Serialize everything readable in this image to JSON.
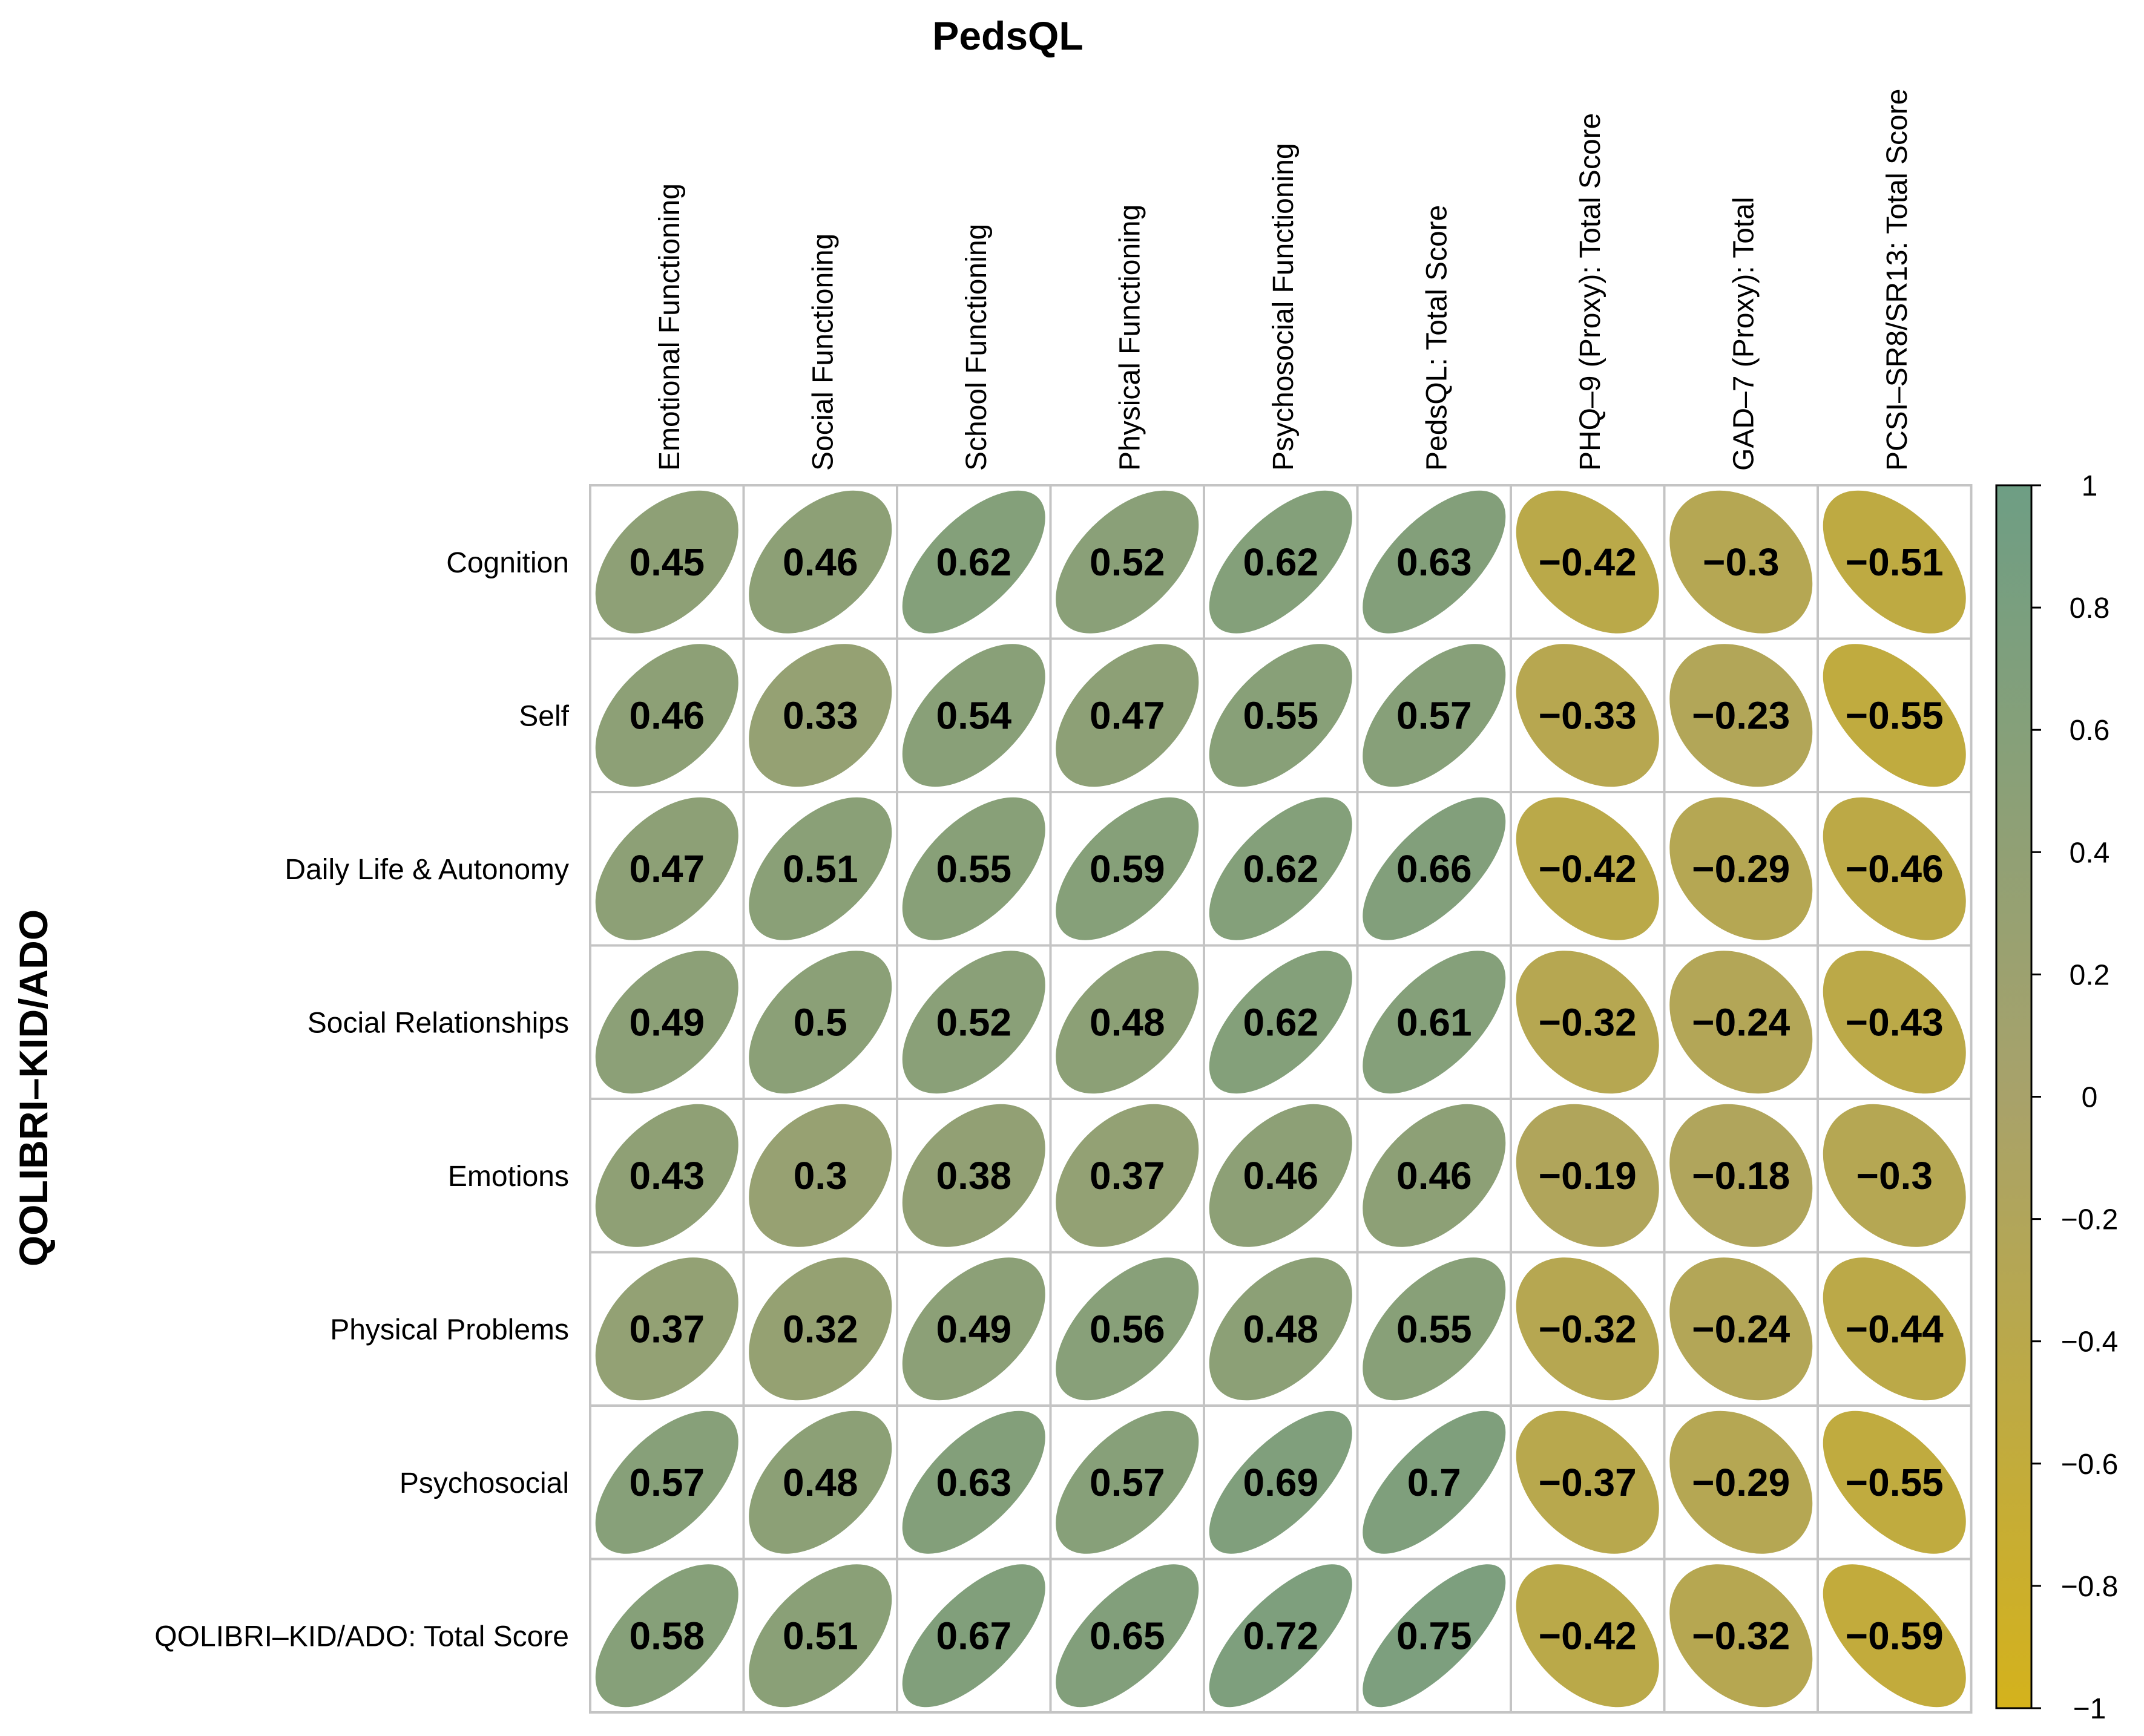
{
  "chart_data": {
    "type": "correlation-ellipse-matrix",
    "title": "PedsQL",
    "ylabel": "QOLIBRI–KID/ADO",
    "columns": [
      "Emotional Functioning",
      "Social Functioning",
      "School Functioning",
      "Physical Functioning",
      "Psychosocial Functioning",
      "PedsQL: Total Score",
      "PHQ–9 (Proxy): Total Score",
      "GAD–7 (Proxy): Total",
      "PCSI–SR8/SR13: Total Score"
    ],
    "rows": [
      "Cognition",
      "Self",
      "Daily Life & Autonomy",
      "Social Relationships",
      "Emotions",
      "Physical Problems",
      "Psychosocial",
      "QOLIBRI–KID/ADO: Total Score"
    ],
    "values": [
      [
        0.45,
        0.46,
        0.62,
        0.52,
        0.62,
        0.63,
        -0.42,
        -0.3,
        -0.51
      ],
      [
        0.46,
        0.33,
        0.54,
        0.47,
        0.55,
        0.57,
        -0.33,
        -0.23,
        -0.55
      ],
      [
        0.47,
        0.51,
        0.55,
        0.59,
        0.62,
        0.66,
        -0.42,
        -0.29,
        -0.46
      ],
      [
        0.49,
        0.5,
        0.52,
        0.48,
        0.62,
        0.61,
        -0.32,
        -0.24,
        -0.43
      ],
      [
        0.43,
        0.3,
        0.38,
        0.37,
        0.46,
        0.46,
        -0.19,
        -0.18,
        -0.3
      ],
      [
        0.37,
        0.32,
        0.49,
        0.56,
        0.48,
        0.55,
        -0.32,
        -0.24,
        -0.44
      ],
      [
        0.57,
        0.48,
        0.63,
        0.57,
        0.69,
        0.7,
        -0.37,
        -0.29,
        -0.55
      ],
      [
        0.58,
        0.51,
        0.67,
        0.65,
        0.72,
        0.75,
        -0.42,
        -0.32,
        -0.59
      ]
    ],
    "labels": [
      [
        "0.45",
        "0.46",
        "0.62",
        "0.52",
        "0.62",
        "0.63",
        "−0.42",
        "−0.3",
        "−0.51"
      ],
      [
        "0.46",
        "0.33",
        "0.54",
        "0.47",
        "0.55",
        "0.57",
        "−0.33",
        "−0.23",
        "−0.55"
      ],
      [
        "0.47",
        "0.51",
        "0.55",
        "0.59",
        "0.62",
        "0.66",
        "−0.42",
        "−0.29",
        "−0.46"
      ],
      [
        "0.49",
        "0.5",
        "0.52",
        "0.48",
        "0.62",
        "0.61",
        "−0.32",
        "−0.24",
        "−0.43"
      ],
      [
        "0.43",
        "0.3",
        "0.38",
        "0.37",
        "0.46",
        "0.46",
        "−0.19",
        "−0.18",
        "−0.3"
      ],
      [
        "0.37",
        "0.32",
        "0.49",
        "0.56",
        "0.48",
        "0.55",
        "−0.32",
        "−0.24",
        "−0.44"
      ],
      [
        "0.57",
        "0.48",
        "0.63",
        "0.57",
        "0.69",
        "0.7",
        "−0.37",
        "−0.29",
        "−0.55"
      ],
      [
        "0.58",
        "0.51",
        "0.67",
        "0.65",
        "0.72",
        "0.75",
        "−0.42",
        "−0.32",
        "−0.59"
      ]
    ],
    "colorbar": {
      "range": [
        -1,
        1
      ],
      "ticks": [
        1,
        0.8,
        0.6,
        0.4,
        0.2,
        0,
        -0.2,
        -0.4,
        -0.6,
        -0.8,
        -1
      ],
      "tick_labels": [
        "1",
        "0.8",
        "0.6",
        "0.4",
        "0.2",
        "0",
        "−0.2",
        "−0.4",
        "−0.6",
        "−0.8",
        "−1"
      ],
      "color_low": "#D4B21C",
      "color_mid": "#A8A26A",
      "color_high": "#6E9E84"
    }
  }
}
